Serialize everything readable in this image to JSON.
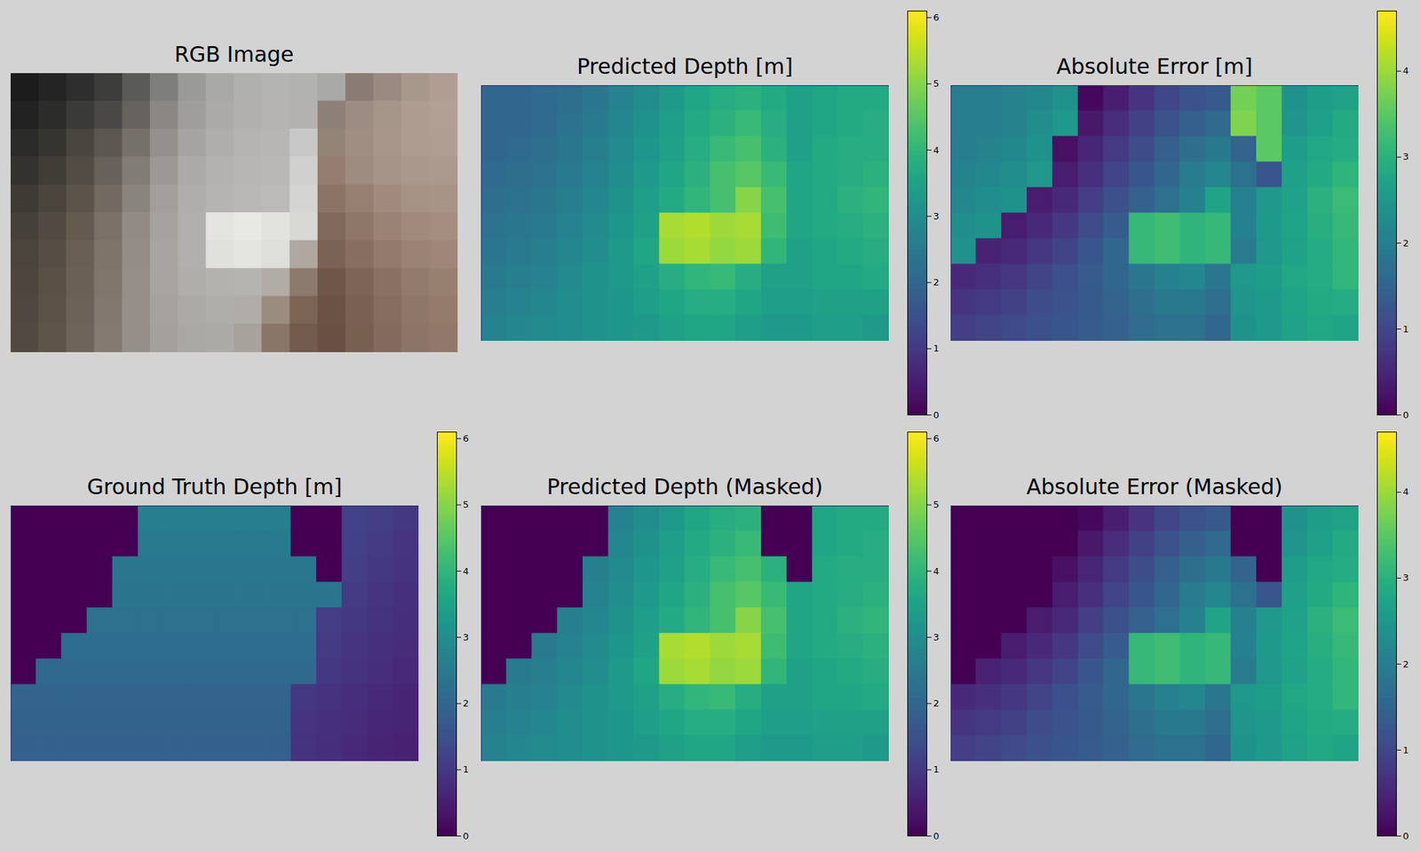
{
  "chart_data": [
    {
      "type": "image",
      "title": "RGB Image",
      "tick_labels": false,
      "colors": [
        [
          "#1c1c1c",
          "#242424",
          "#2e2e2e",
          "#3c3c3a",
          "#5a5a58",
          "#7e7e7c",
          "#9a9a98",
          "#a8a8a6",
          "#b0b0ae",
          "#b4b4b2",
          "#b2b2b0",
          "#a8a8a6",
          "#8a7c74",
          "#9a8a80",
          "#a8988c",
          "#b09e92"
        ],
        [
          "#222222",
          "#2c2c2a",
          "#3a3a38",
          "#4a4846",
          "#66625e",
          "#8a8784",
          "#a09e9c",
          "#acaaa8",
          "#b2b0ae",
          "#b6b4b2",
          "#b4b2b0",
          "#8e8078",
          "#9c8c82",
          "#a6968a",
          "#ae9c90",
          "#b2a094"
        ],
        [
          "#2a2a28",
          "#36342f",
          "#48443e",
          "#5c5650",
          "#76706a",
          "#94908c",
          "#a6a4a2",
          "#b0aeac",
          "#b6b4b2",
          "#b8b6b4",
          "#c8c8c8",
          "#948478",
          "#a08e82",
          "#a8968a",
          "#ae9c90",
          "#b09e92"
        ],
        [
          "#34322e",
          "#403c36",
          "#524c44",
          "#68605a",
          "#827c76",
          "#9c9894",
          "#acaaa8",
          "#b4b2b0",
          "#b8b6b4",
          "#bab8b6",
          "#d0d0ce",
          "#947e72",
          "#9e8c80",
          "#a69488",
          "#aa988c",
          "#ac9a8e"
        ],
        [
          "#3e3a34",
          "#4a443c",
          "#5c544a",
          "#726a62",
          "#8a847e",
          "#a29e9a",
          "#b0aeac",
          "#b6b4b2",
          "#bab8b6",
          "#bcbab8",
          "#d4d4d2",
          "#8a7466",
          "#967e70",
          "#a08a7e",
          "#a69284",
          "#a89486"
        ],
        [
          "#46403a",
          "#524a42",
          "#645a50",
          "#7a7068",
          "#928a84",
          "#a6a29e",
          "#b2b0ae",
          "#e4e4e0",
          "#e8e8e4",
          "#e2e2de",
          "#d8d8d4",
          "#806a5c",
          "#8e7668",
          "#9a8274",
          "#a08a7c",
          "#a48e80"
        ],
        [
          "#4a443c",
          "#564e44",
          "#685e54",
          "#7e746a",
          "#948c86",
          "#a8a4a0",
          "#b2b0ae",
          "#e0e0dc",
          "#e4e4e0",
          "#dededa",
          "#b0a8a0",
          "#7a6256",
          "#886e60",
          "#947a6c",
          "#9a8274",
          "#9e8678"
        ],
        [
          "#4e463e",
          "#5a5046",
          "#6a6056",
          "#80766c",
          "#968e88",
          "#a8a4a0",
          "#b0aeaa",
          "#b4b2ae",
          "#b6b4b0",
          "#b2aca6",
          "#8c7a6e",
          "#705648",
          "#7e6456",
          "#8a7062",
          "#927a6c",
          "#98806e"
        ],
        [
          "#504840",
          "#5c5248",
          "#6c6258",
          "#827870",
          "#968e88",
          "#a6a29e",
          "#acaaa6",
          "#b0aeaa",
          "#b0ada8",
          "#9c8c80",
          "#7a6454",
          "#6c5244",
          "#7a6052",
          "#866c5e",
          "#8e7668",
          "#947c6a"
        ],
        [
          "#524a42",
          "#5e544a",
          "#6e645a",
          "#847a72",
          "#968e88",
          "#a4a09c",
          "#aaa8a4",
          "#acaaa6",
          "#a8a29c",
          "#8a7668",
          "#725a4c",
          "#6a5042",
          "#786050",
          "#846a5c",
          "#8c7466",
          "#92786a"
        ]
      ]
    },
    {
      "type": "heatmap",
      "title": "Predicted Depth [m]",
      "color": "viridis",
      "tick_labels": false,
      "colorbar": {
        "range": [
          0,
          6.1
        ],
        "ticks": [
          0,
          1,
          2,
          3,
          4,
          5,
          6
        ]
      },
      "cells": [
        [
          2.0,
          2.0,
          2.1,
          2.2,
          2.4,
          2.7,
          3.0,
          3.3,
          3.6,
          3.8,
          3.9,
          3.7,
          3.5,
          3.6,
          3.7,
          3.7
        ],
        [
          2.0,
          2.0,
          2.1,
          2.3,
          2.5,
          2.8,
          3.1,
          3.4,
          3.7,
          3.9,
          4.1,
          3.8,
          3.5,
          3.6,
          3.7,
          3.8
        ],
        [
          2.0,
          2.1,
          2.2,
          2.4,
          2.6,
          2.9,
          3.2,
          3.5,
          3.8,
          4.1,
          4.3,
          3.9,
          3.5,
          3.7,
          3.8,
          3.8
        ],
        [
          2.1,
          2.2,
          2.3,
          2.5,
          2.7,
          3.0,
          3.3,
          3.6,
          3.9,
          4.3,
          4.5,
          4.1,
          3.6,
          3.7,
          3.8,
          3.9
        ],
        [
          2.2,
          2.3,
          2.4,
          2.6,
          2.8,
          3.1,
          3.4,
          3.7,
          4.0,
          4.3,
          5.0,
          4.3,
          3.6,
          3.7,
          3.9,
          4.0
        ],
        [
          2.3,
          2.4,
          2.5,
          2.7,
          2.9,
          3.2,
          3.5,
          5.3,
          5.4,
          5.2,
          5.3,
          4.2,
          3.6,
          3.7,
          3.8,
          3.9
        ],
        [
          2.4,
          2.5,
          2.6,
          2.8,
          3.0,
          3.3,
          3.6,
          5.2,
          5.3,
          5.1,
          5.2,
          4.0,
          3.5,
          3.6,
          3.7,
          3.8
        ],
        [
          2.5,
          2.6,
          2.7,
          2.9,
          3.1,
          3.3,
          3.5,
          3.8,
          4.0,
          4.1,
          3.8,
          3.5,
          3.5,
          3.6,
          3.6,
          3.7
        ],
        [
          2.6,
          2.7,
          2.8,
          3.0,
          3.1,
          3.2,
          3.4,
          3.6,
          3.8,
          3.8,
          3.6,
          3.4,
          3.4,
          3.5,
          3.5,
          3.5
        ],
        [
          2.7,
          2.8,
          2.9,
          3.0,
          3.1,
          3.2,
          3.3,
          3.5,
          3.6,
          3.6,
          3.4,
          3.3,
          3.3,
          3.4,
          3.4,
          3.3
        ]
      ]
    },
    {
      "type": "heatmap",
      "title": "Absolute Error [m]",
      "color": "viridis",
      "tick_labels": false,
      "colorbar": {
        "range": [
          0,
          4.7
        ],
        "ticks": [
          0,
          1,
          2,
          3,
          4
        ]
      },
      "cells": [
        [
          2.0,
          2.0,
          2.1,
          2.2,
          2.4,
          0.1,
          0.4,
          0.7,
          1.0,
          1.2,
          1.3,
          3.7,
          3.5,
          2.4,
          2.6,
          2.7
        ],
        [
          2.0,
          2.0,
          2.1,
          2.3,
          2.5,
          0.3,
          0.6,
          0.9,
          1.2,
          1.4,
          1.6,
          3.8,
          3.5,
          2.45,
          2.65,
          2.85
        ],
        [
          2.0,
          2.1,
          2.2,
          2.4,
          0.2,
          0.5,
          0.8,
          1.1,
          1.4,
          1.7,
          1.9,
          1.5,
          3.5,
          2.6,
          2.8,
          2.9
        ],
        [
          2.1,
          2.2,
          2.3,
          2.5,
          0.35,
          0.65,
          0.95,
          1.25,
          1.55,
          1.95,
          2.15,
          1.75,
          1.25,
          2.65,
          2.85,
          3.05
        ],
        [
          2.2,
          2.3,
          2.4,
          0.35,
          0.55,
          0.85,
          1.15,
          1.45,
          1.75,
          2.05,
          2.75,
          2.05,
          2.5,
          2.7,
          3.0,
          3.2
        ],
        [
          2.3,
          2.4,
          0.35,
          0.55,
          0.75,
          1.05,
          1.35,
          3.15,
          3.25,
          3.05,
          3.15,
          2.05,
          2.55,
          2.75,
          2.95,
          3.15
        ],
        [
          2.4,
          0.45,
          0.55,
          0.75,
          0.95,
          1.25,
          1.55,
          3.15,
          3.25,
          3.05,
          3.15,
          1.95,
          2.5,
          2.7,
          2.9,
          3.1
        ],
        [
          0.55,
          0.65,
          0.75,
          0.95,
          1.15,
          1.35,
          1.55,
          1.85,
          2.05,
          2.15,
          1.85,
          2.5,
          2.6,
          2.8,
          2.9,
          3.1
        ],
        [
          0.7,
          0.8,
          0.9,
          1.1,
          1.2,
          1.3,
          1.5,
          1.7,
          1.9,
          1.9,
          1.7,
          2.45,
          2.55,
          2.75,
          2.85,
          2.9
        ],
        [
          0.85,
          0.95,
          1.05,
          1.15,
          1.25,
          1.35,
          1.45,
          1.65,
          1.75,
          1.75,
          1.55,
          2.4,
          2.5,
          2.7,
          2.8,
          2.75
        ]
      ]
    },
    {
      "type": "heatmap",
      "title": "Ground Truth Depth [m]",
      "color": "viridis",
      "tick_labels": false,
      "colorbar": {
        "range": [
          0,
          6.1
        ],
        "ticks": [
          0,
          1,
          2,
          3,
          4,
          5,
          6
        ]
      },
      "cells": [
        [
          0,
          0,
          0,
          0,
          0,
          2.6,
          2.6,
          2.6,
          2.6,
          2.6,
          2.6,
          0,
          0,
          1.2,
          1.1,
          1.0
        ],
        [
          0,
          0,
          0,
          0,
          0,
          2.5,
          2.5,
          2.5,
          2.5,
          2.5,
          2.5,
          0,
          0,
          1.15,
          1.05,
          0.95
        ],
        [
          0,
          0,
          0,
          0,
          2.4,
          2.4,
          2.4,
          2.4,
          2.4,
          2.4,
          2.4,
          2.4,
          0,
          1.1,
          1.0,
          0.9
        ],
        [
          0,
          0,
          0,
          0,
          2.35,
          2.35,
          2.35,
          2.35,
          2.35,
          2.35,
          2.35,
          2.35,
          2.35,
          1.05,
          0.95,
          0.85
        ],
        [
          0,
          0,
          0,
          2.25,
          2.25,
          2.25,
          2.25,
          2.25,
          2.25,
          2.25,
          2.25,
          2.25,
          1.1,
          1.0,
          0.9,
          0.8
        ],
        [
          0,
          0,
          2.15,
          2.15,
          2.15,
          2.15,
          2.15,
          2.15,
          2.15,
          2.15,
          2.15,
          2.15,
          1.05,
          0.95,
          0.85,
          0.75
        ],
        [
          0,
          2.05,
          2.05,
          2.05,
          2.05,
          2.05,
          2.05,
          2.05,
          2.05,
          2.05,
          2.05,
          2.05,
          1.0,
          0.9,
          0.8,
          0.7
        ],
        [
          1.95,
          1.95,
          1.95,
          1.95,
          1.95,
          1.95,
          1.95,
          1.95,
          1.95,
          1.95,
          1.95,
          1.0,
          0.9,
          0.8,
          0.7,
          0.6
        ],
        [
          1.9,
          1.9,
          1.9,
          1.9,
          1.9,
          1.9,
          1.9,
          1.9,
          1.9,
          1.9,
          1.9,
          0.95,
          0.85,
          0.75,
          0.65,
          0.6
        ],
        [
          1.85,
          1.85,
          1.85,
          1.85,
          1.85,
          1.85,
          1.85,
          1.85,
          1.85,
          1.85,
          1.85,
          0.9,
          0.8,
          0.7,
          0.6,
          0.55
        ]
      ]
    },
    {
      "type": "heatmap",
      "title": "Predicted Depth (Masked)",
      "color": "viridis",
      "tick_labels": false,
      "colorbar": {
        "range": [
          0,
          6.1
        ],
        "ticks": [
          0,
          1,
          2,
          3,
          4,
          5,
          6
        ]
      },
      "cells": [
        [
          0,
          0,
          0,
          0,
          0,
          2.7,
          3.0,
          3.3,
          3.6,
          3.8,
          3.9,
          0,
          0,
          3.6,
          3.7,
          3.7
        ],
        [
          0,
          0,
          0,
          0,
          0,
          2.8,
          3.1,
          3.4,
          3.7,
          3.9,
          4.1,
          0,
          0,
          3.6,
          3.7,
          3.8
        ],
        [
          0,
          0,
          0,
          0,
          2.6,
          2.9,
          3.2,
          3.5,
          3.8,
          4.1,
          4.3,
          3.9,
          0,
          3.7,
          3.8,
          3.8
        ],
        [
          0,
          0,
          0,
          0,
          2.7,
          3.0,
          3.3,
          3.6,
          3.9,
          4.3,
          4.5,
          4.1,
          3.6,
          3.7,
          3.8,
          3.9
        ],
        [
          0,
          0,
          0,
          2.6,
          2.8,
          3.1,
          3.4,
          3.7,
          4.0,
          4.3,
          5.0,
          4.3,
          3.6,
          3.7,
          3.9,
          4.0
        ],
        [
          0,
          0,
          2.5,
          2.7,
          2.9,
          3.2,
          3.5,
          5.3,
          5.4,
          5.2,
          5.3,
          4.2,
          3.6,
          3.7,
          3.8,
          3.9
        ],
        [
          0,
          2.5,
          2.6,
          2.8,
          3.0,
          3.3,
          3.6,
          5.2,
          5.3,
          5.1,
          5.2,
          4.0,
          3.5,
          3.6,
          3.7,
          3.8
        ],
        [
          2.5,
          2.6,
          2.7,
          2.9,
          3.1,
          3.3,
          3.5,
          3.8,
          4.0,
          4.1,
          3.8,
          3.5,
          3.5,
          3.6,
          3.6,
          3.7
        ],
        [
          2.6,
          2.7,
          2.8,
          3.0,
          3.1,
          3.2,
          3.4,
          3.6,
          3.8,
          3.8,
          3.6,
          3.4,
          3.4,
          3.5,
          3.5,
          3.5
        ],
        [
          2.7,
          2.8,
          2.9,
          3.0,
          3.1,
          3.2,
          3.3,
          3.5,
          3.6,
          3.6,
          3.4,
          3.3,
          3.3,
          3.4,
          3.4,
          3.3
        ]
      ]
    },
    {
      "type": "heatmap",
      "title": "Absolute Error (Masked)",
      "color": "viridis",
      "tick_labels": false,
      "colorbar": {
        "range": [
          0,
          4.7
        ],
        "ticks": [
          0,
          1,
          2,
          3,
          4
        ]
      },
      "cells": [
        [
          0,
          0,
          0,
          0,
          0,
          0.1,
          0.4,
          0.7,
          1.0,
          1.2,
          1.3,
          0,
          0,
          2.4,
          2.6,
          2.7
        ],
        [
          0,
          0,
          0,
          0,
          0,
          0.3,
          0.6,
          0.9,
          1.2,
          1.4,
          1.6,
          0,
          0,
          2.45,
          2.65,
          2.85
        ],
        [
          0,
          0,
          0,
          0,
          0.2,
          0.5,
          0.8,
          1.1,
          1.4,
          1.7,
          1.9,
          1.5,
          0,
          2.6,
          2.8,
          2.9
        ],
        [
          0,
          0,
          0,
          0,
          0.35,
          0.65,
          0.95,
          1.25,
          1.55,
          1.95,
          2.15,
          1.75,
          1.25,
          2.65,
          2.85,
          3.05
        ],
        [
          0,
          0,
          0,
          0.35,
          0.55,
          0.85,
          1.15,
          1.45,
          1.75,
          2.05,
          2.75,
          2.05,
          2.5,
          2.7,
          3.0,
          3.2
        ],
        [
          0,
          0,
          0.35,
          0.55,
          0.75,
          1.05,
          1.35,
          3.15,
          3.25,
          3.05,
          3.15,
          2.05,
          2.55,
          2.75,
          2.95,
          3.15
        ],
        [
          0,
          0.45,
          0.55,
          0.75,
          0.95,
          1.25,
          1.55,
          3.15,
          3.25,
          3.05,
          3.15,
          1.95,
          2.5,
          2.7,
          2.9,
          3.1
        ],
        [
          0.55,
          0.65,
          0.75,
          0.95,
          1.15,
          1.35,
          1.55,
          1.85,
          2.05,
          2.15,
          1.85,
          2.5,
          2.6,
          2.8,
          2.9,
          3.1
        ],
        [
          0.7,
          0.8,
          0.9,
          1.1,
          1.2,
          1.3,
          1.5,
          1.7,
          1.9,
          1.9,
          1.7,
          2.45,
          2.55,
          2.75,
          2.85,
          2.9
        ],
        [
          0.85,
          0.95,
          1.05,
          1.15,
          1.25,
          1.35,
          1.45,
          1.65,
          1.75,
          1.75,
          1.55,
          2.4,
          2.5,
          2.7,
          2.8,
          2.75
        ]
      ]
    }
  ]
}
